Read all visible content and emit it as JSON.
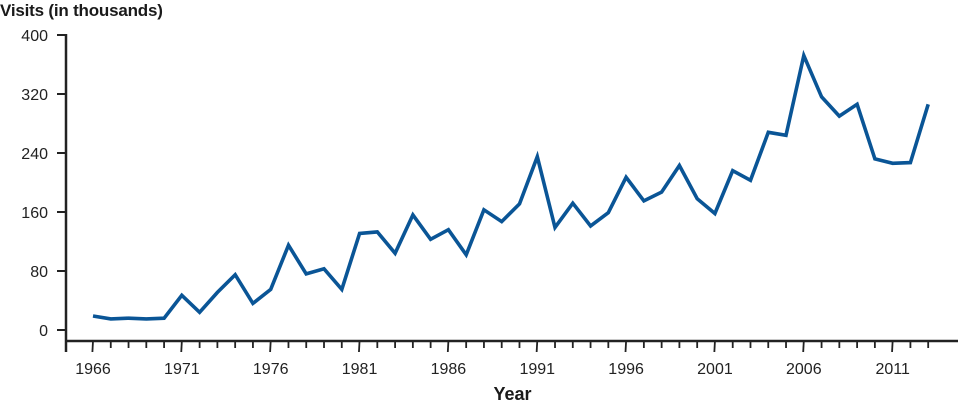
{
  "chart_data": {
    "type": "line",
    "title": "",
    "ylabel": "Visits (in thousands)",
    "xlabel": "Year",
    "ylim": [
      0,
      400
    ],
    "yticks": [
      0,
      80,
      160,
      240,
      320,
      400
    ],
    "xlim": [
      1966,
      2013
    ],
    "xtick_labels": [
      "1966",
      "1971",
      "1976",
      "1981",
      "1986",
      "1991",
      "1996",
      "2001",
      "2006",
      "2011"
    ],
    "grid": false,
    "legend": null,
    "line_color": "#0a5596",
    "x": [
      1966,
      1967,
      1968,
      1969,
      1970,
      1971,
      1972,
      1973,
      1974,
      1975,
      1976,
      1977,
      1978,
      1979,
      1980,
      1981,
      1982,
      1983,
      1984,
      1985,
      1986,
      1987,
      1988,
      1989,
      1990,
      1991,
      1992,
      1993,
      1994,
      1995,
      1996,
      1997,
      1998,
      1999,
      2000,
      2001,
      2002,
      2003,
      2004,
      2005,
      2006,
      2007,
      2008,
      2009,
      2010,
      2011,
      2012,
      2013
    ],
    "series": [
      {
        "name": "Visits",
        "values": [
          19,
          15,
          16,
          15,
          16,
          47,
          24,
          51,
          75,
          36,
          55,
          115,
          76,
          83,
          55,
          131,
          133,
          104,
          156,
          123,
          136,
          102,
          163,
          147,
          171,
          235,
          139,
          172,
          141,
          159,
          207,
          175,
          187,
          223,
          178,
          158,
          216,
          203,
          268,
          264,
          372,
          316,
          290,
          306,
          232,
          226,
          227,
          306
        ]
      }
    ]
  }
}
